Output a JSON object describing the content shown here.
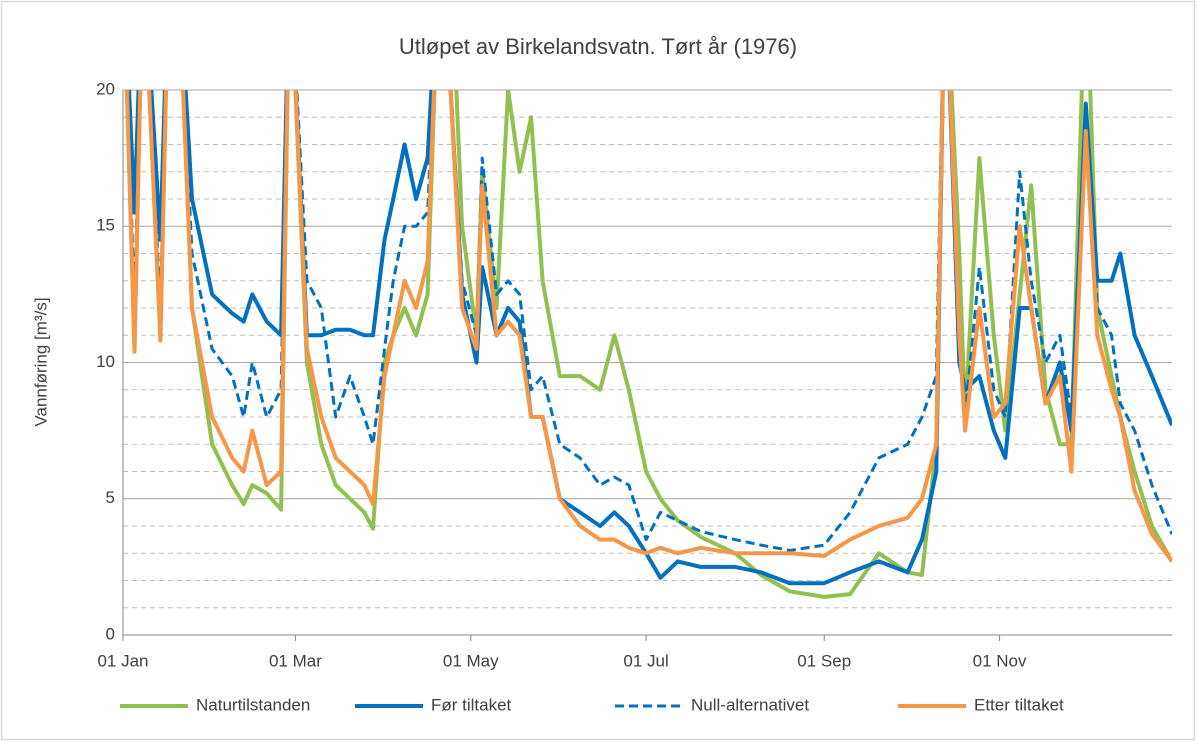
{
  "chart_data": {
    "type": "line",
    "title": "Utløpet av Birkelandsvatn. Tørt år (1976)",
    "y_label": "Vannføring [m³/s]",
    "x": [
      "01 Jan",
      "05 Jan",
      "08 Jan",
      "14 Jan",
      "17 Jan",
      "20 Jan",
      "25 Jan",
      "01 Feb",
      "08 Feb",
      "12 Feb",
      "15 Feb",
      "20 Feb",
      "25 Feb",
      "28 Feb",
      "05 Mar",
      "10 Mar",
      "15 Mar",
      "20 Mar",
      "25 Mar",
      "28 Mar",
      "01 Apr",
      "04 Apr",
      "08 Apr",
      "12 Apr",
      "16 Apr",
      "20 Apr",
      "24 Apr",
      "28 Apr",
      "03 May",
      "05 May",
      "10 May",
      "14 May",
      "18 May",
      "22 May",
      "26 May",
      "01 Jun",
      "08 Jun",
      "15 Jun",
      "20 Jun",
      "25 Jun",
      "01 Jul",
      "06 Jul",
      "12 Jul",
      "20 Jul",
      "01 Aug",
      "10 Aug",
      "20 Aug",
      "01 Sep",
      "10 Sep",
      "20 Sep",
      "30 Sep",
      "05 Oct",
      "10 Oct",
      "13 Oct",
      "18 Oct",
      "20 Oct",
      "25 Oct",
      "30 Oct",
      "03 Nov",
      "08 Nov",
      "12 Nov",
      "17 Nov",
      "22 Nov",
      "26 Nov",
      "01 Dec",
      "05 Dec",
      "10 Dec",
      "13 Dec",
      "18 Dec",
      "24 Dec",
      "31 Dec"
    ],
    "series": [
      {
        "name": "Naturtilstanden",
        "color": "#92c050",
        "style": "solid",
        "values": [
          25,
          10.5,
          25,
          11,
          25,
          25,
          12,
          7,
          5.5,
          4.8,
          5.5,
          5.2,
          4.6,
          25,
          10,
          7,
          5.5,
          5,
          4.5,
          3.9,
          10,
          11,
          12,
          11,
          12.5,
          25,
          25,
          15,
          11,
          17,
          12,
          20,
          17,
          19,
          13,
          9.5,
          9.5,
          9,
          11,
          9,
          6,
          5,
          4.2,
          3.6,
          3,
          2.2,
          1.6,
          1.4,
          1.5,
          3,
          2.3,
          2.2,
          7,
          25,
          14,
          8,
          17.5,
          11,
          7.5,
          12.5,
          16.5,
          9,
          7,
          7,
          25,
          12,
          9.5,
          8,
          6,
          4,
          2.7
        ]
      },
      {
        "name": "Før tiltaket",
        "color": "#0070c0",
        "style": "solid",
        "values": [
          25,
          15.5,
          25,
          14.5,
          25,
          25,
          16,
          12.5,
          11.8,
          11.5,
          12.5,
          11.5,
          11,
          25,
          11,
          11,
          11.2,
          11.2,
          11,
          11,
          14.5,
          16,
          18,
          16,
          17.5,
          25,
          20,
          12.5,
          10,
          13.5,
          11,
          12,
          11.5,
          8,
          8,
          5,
          4.5,
          4,
          4.5,
          4,
          3,
          2.1,
          2.7,
          2.5,
          2.5,
          2.3,
          1.9,
          1.9,
          2.3,
          2.7,
          2.3,
          3.5,
          6,
          25,
          10,
          9,
          9.5,
          7.5,
          6.5,
          12,
          12,
          8.5,
          10,
          7.5,
          19.5,
          13,
          13,
          14,
          11,
          9.5,
          7.7
        ]
      },
      {
        "name": "Null-alternativet",
        "color": "#0070c0",
        "style": "dashed",
        "values": [
          25,
          12,
          25,
          12,
          25,
          25,
          14,
          10.5,
          9.5,
          8,
          10,
          8,
          9,
          25,
          13,
          12,
          8,
          9.5,
          8,
          7,
          10.5,
          13,
          15,
          15,
          15.5,
          25,
          20,
          13,
          11,
          17.5,
          12.5,
          13,
          12.5,
          9,
          9.5,
          7,
          6.5,
          5.5,
          5.8,
          5.5,
          3.5,
          4.5,
          4.2,
          3.8,
          3.5,
          3.3,
          3.1,
          3.3,
          4.5,
          6.5,
          7,
          8,
          9.5,
          25,
          11,
          8,
          13.5,
          9,
          8,
          17,
          13,
          10,
          11,
          8,
          19.5,
          12,
          11,
          8.5,
          7.5,
          5.5,
          3.7
        ]
      },
      {
        "name": "Etter tiltaket",
        "color": "#f79646",
        "style": "solid",
        "values": [
          25,
          10.4,
          25,
          10.8,
          25,
          25,
          12,
          8,
          6.5,
          6,
          7.5,
          5.5,
          6,
          25,
          10.5,
          8,
          6.5,
          6,
          5.5,
          4.8,
          9.5,
          11,
          13,
          12,
          13.7,
          25,
          20,
          12,
          10.5,
          16.5,
          11,
          11.5,
          11,
          8,
          8,
          5,
          4,
          3.5,
          3.5,
          3.2,
          3,
          3.2,
          3,
          3.2,
          3,
          3,
          3,
          2.9,
          3.5,
          4,
          4.3,
          5,
          7,
          25,
          11,
          7.5,
          12,
          8,
          8.5,
          15,
          12,
          8.5,
          9.5,
          6,
          18.5,
          11,
          9,
          8,
          5.3,
          3.7,
          2.7
        ]
      }
    ],
    "xlim": [
      "01 Jan",
      "31 Dec"
    ],
    "xticks": [
      "01 Jan",
      "01 Mar",
      "01 May",
      "01 Jul",
      "01 Sep",
      "01 Nov"
    ],
    "ylim": [
      0,
      20
    ],
    "yticks": [
      0,
      5,
      10,
      15,
      20
    ],
    "y_minor_ticks": [
      1,
      2,
      3,
      4,
      6,
      7,
      8,
      9,
      11,
      12,
      13,
      14,
      16,
      17,
      18,
      19
    ],
    "grid": true,
    "legend": "bottom"
  }
}
